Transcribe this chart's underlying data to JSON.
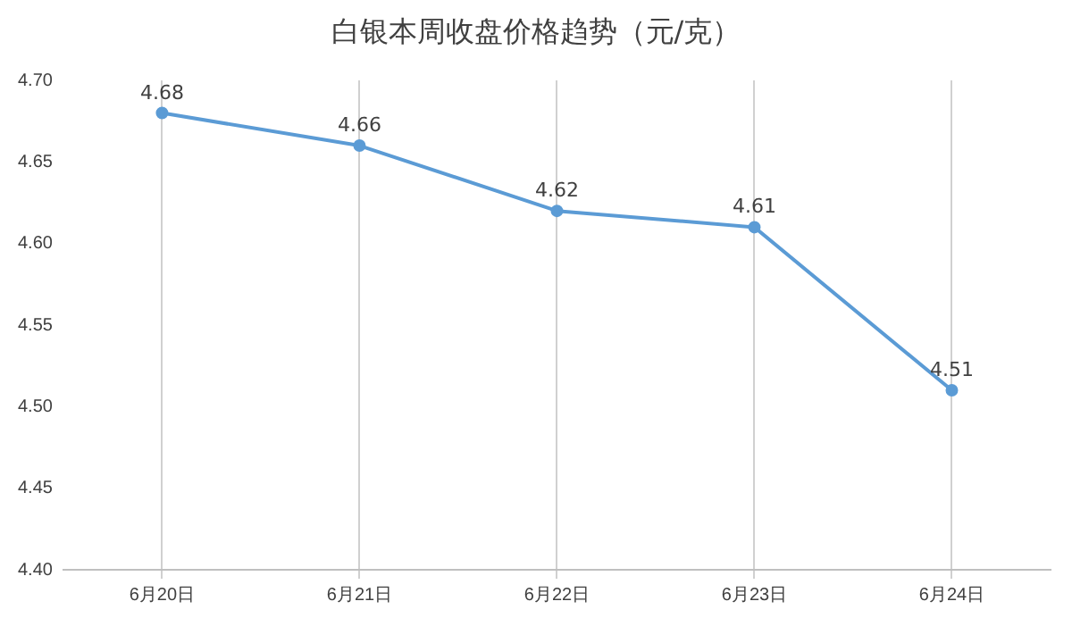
{
  "chart_data": {
    "type": "line",
    "title": "白银本周收盘价格趋势（元/克）",
    "categories": [
      "6月20日",
      "6月21日",
      "6月22日",
      "6月23日",
      "6月24日"
    ],
    "series": [
      {
        "color": "#5b9bd5",
        "values": [
          4.68,
          4.66,
          4.62,
          4.61,
          4.51
        ]
      }
    ],
    "ylim": [
      4.4,
      4.7
    ],
    "yticks": [
      {
        "value": 4.4,
        "label": "4.40"
      },
      {
        "value": 4.45,
        "label": "4.45"
      },
      {
        "value": 4.5,
        "label": "4.50"
      },
      {
        "value": 4.55,
        "label": "4.55"
      },
      {
        "value": 4.6,
        "label": "4.60"
      },
      {
        "value": 4.65,
        "label": "4.65"
      },
      {
        "value": 4.7,
        "label": "4.70"
      }
    ],
    "grid": "x",
    "legend": false,
    "marker": "circle",
    "line_style": "solid",
    "data_labels": true
  }
}
